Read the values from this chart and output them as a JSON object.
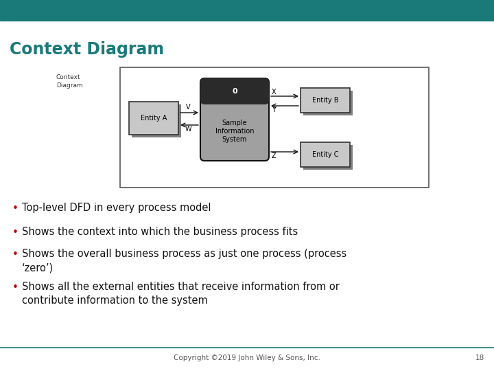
{
  "title": "Context Diagram",
  "title_color": "#1a7a7a",
  "header_color": "#1a7a7a",
  "bg_color": "#ffffff",
  "bullet_points": [
    "Top-level DFD in every process model",
    "Shows the context into which the business process fits",
    "Shows the overall business process as just one process (process\n‘zero’)",
    "Shows all the external entities that receive information from or\ncontribute information to the system"
  ],
  "bullet_color": "#111111",
  "bullet_dot_color": "#c00000",
  "footer_text": "Copyright ©2019 John Wiley & Sons, Inc.",
  "footer_page": "18",
  "footer_line_color": "#1a7a7a",
  "diagram_label": "Context\nDiagram",
  "entity_a_label": "Entity A",
  "entity_b_label": "Entity B",
  "entity_c_label": "Entity C",
  "process_label": "Sample\nInformation\nSystem",
  "process_number": "0",
  "flow_v": "V",
  "flow_w": "W",
  "flow_x": "X",
  "flow_y": "Y",
  "flow_z": "Z",
  "entity_fill": "#c8c8c8",
  "entity_shadow": "#808080",
  "entity_edge": "#333333",
  "process_fill_top": "#2a2a2a",
  "process_fill_bottom": "#a0a0a0",
  "process_edge": "#111111",
  "diagram_box_fill": "#ffffff",
  "diagram_box_edge": "#555555"
}
